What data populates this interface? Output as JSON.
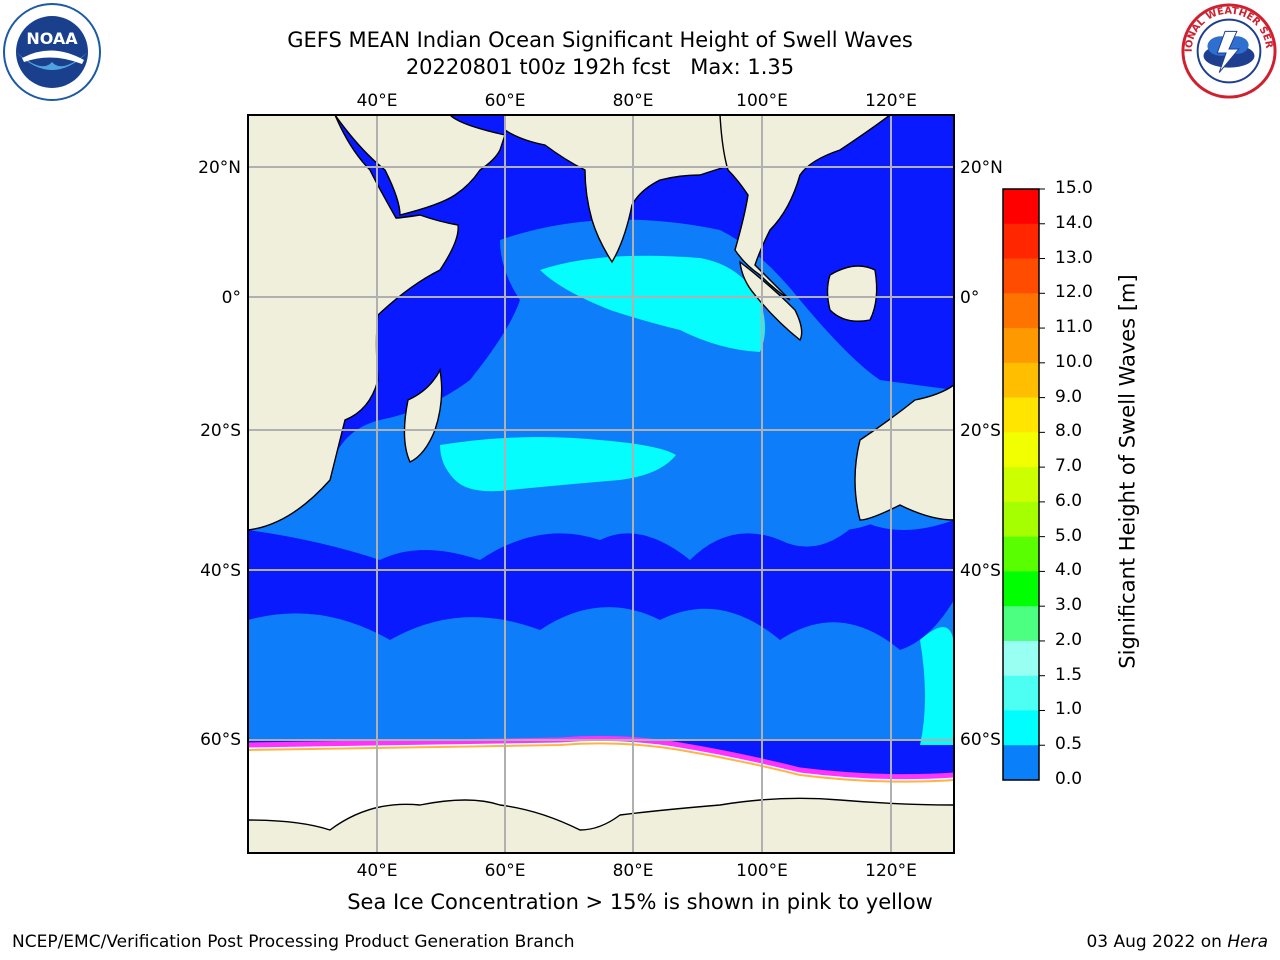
{
  "header": {
    "title_line1": "GEFS MEAN Indian Ocean Significant Height of Swell Waves",
    "title_line2": "20220801 t00z 192h fcst   Max: 1.35",
    "left_logo_text": "NOAA",
    "right_logo_text": "NATIONAL WEATHER SERVICE"
  },
  "map": {
    "lon_ticks_top": [
      "40°E",
      "60°E",
      "80°E",
      "100°E",
      "120°E"
    ],
    "lon_ticks_bottom": [
      "40°E",
      "60°E",
      "80°E",
      "100°E",
      "120°E"
    ],
    "lat_ticks_left": [
      "20°N",
      "0°",
      "20°S",
      "40°S",
      "60°S"
    ],
    "lat_ticks_right": [
      "20°N",
      "0°",
      "20°S",
      "40°S",
      "60°S"
    ],
    "colors": {
      "ocean_low": "#0a1aff",
      "ocean_mid": "#0d7dfa",
      "ocean_high": "#06fdfd",
      "land": "#efefdc",
      "ice": "#ffffff",
      "ice_edge": "#ff33ff"
    }
  },
  "colorbar": {
    "title": "Significant Height of Swell Waves [m]",
    "labels": [
      "15.0",
      "14.0",
      "13.0",
      "12.0",
      "11.0",
      "10.0",
      "9.0",
      "8.0",
      "7.0",
      "6.0",
      "5.0",
      "4.0",
      "3.0",
      "2.0",
      "1.5",
      "1.0",
      "0.5",
      "0.0"
    ],
    "colors": [
      "#ff0000",
      "#ff2600",
      "#ff4c00",
      "#ff7300",
      "#ff9900",
      "#ffbf00",
      "#ffe500",
      "#f2ff00",
      "#ccff00",
      "#a6ff00",
      "#59ff00",
      "#00ff00",
      "#4dff80",
      "#99fff2",
      "#4dfff2",
      "#00fefe",
      "#0a7ffa",
      "#0000ff"
    ]
  },
  "footer": {
    "caption": "Sea Ice Concentration > 15% is shown in pink to yellow",
    "left": "NCEP/EMC/Verification Post Processing Product Generation Branch",
    "right_date": "03 Aug 2022 on ",
    "right_host": "Hera"
  }
}
